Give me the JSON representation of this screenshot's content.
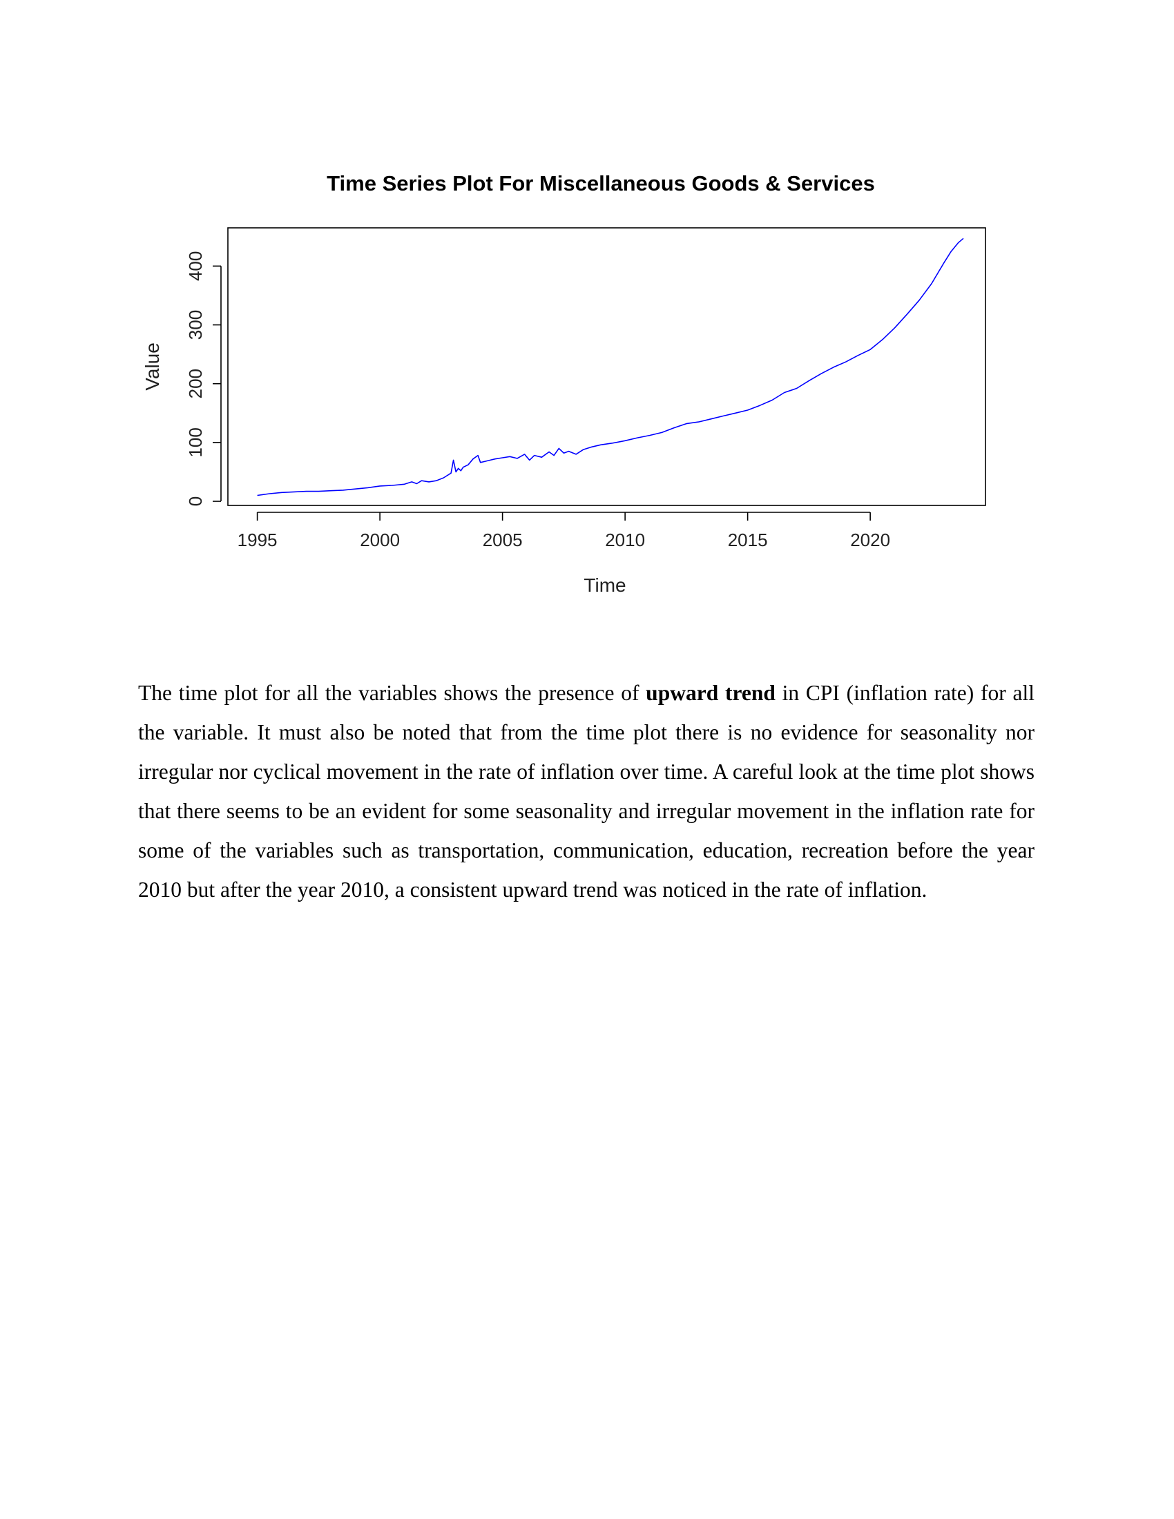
{
  "chart_data": {
    "type": "line",
    "title": "Time Series Plot For Miscellaneous Goods & Services",
    "xlabel": "Time",
    "ylabel": "Value",
    "xlim": [
      1993.8,
      2024.7
    ],
    "ylim": [
      -7,
      465
    ],
    "x_ticks": [
      1995,
      2000,
      2005,
      2010,
      2015,
      2020
    ],
    "y_ticks": [
      0,
      100,
      200,
      300,
      400
    ],
    "grid": false,
    "legend": "none",
    "line_color": "#0000ff",
    "series": [
      {
        "x": [
          1995,
          1995.5,
          1996,
          1996.5,
          1997,
          1997.5,
          1998,
          1998.5,
          1999,
          1999.5,
          2000,
          2000.5,
          2001,
          2001.3,
          2001.5,
          2001.7,
          2002,
          2002.3,
          2002.6,
          2002.9,
          2003.0,
          2003.1,
          2003.2,
          2003.3,
          2003.4,
          2003.6,
          2003.8,
          2004.0,
          2004.1,
          2004.3,
          2004.5,
          2004.7,
          2005.0,
          2005.3,
          2005.6,
          2005.9,
          2006.1,
          2006.3,
          2006.6,
          2006.9,
          2007.1,
          2007.3,
          2007.5,
          2007.7,
          2008.0,
          2008.3,
          2008.6,
          2009.0,
          2009.5,
          2010,
          2010.5,
          2011,
          2011.5,
          2012,
          2012.5,
          2013,
          2013.5,
          2014,
          2014.5,
          2015,
          2015.5,
          2016,
          2016.5,
          2017,
          2017.5,
          2018,
          2018.5,
          2019,
          2019.5,
          2020,
          2020.5,
          2021,
          2021.5,
          2022,
          2022.5,
          2023,
          2023.3,
          2023.6,
          2023.8
        ],
        "y": [
          10,
          13,
          15,
          16,
          17,
          17,
          18,
          19,
          21,
          23,
          26,
          27,
          29,
          33,
          30,
          35,
          33,
          35,
          40,
          48,
          70,
          50,
          56,
          52,
          58,
          62,
          72,
          78,
          66,
          68,
          70,
          72,
          74,
          76,
          73,
          80,
          70,
          78,
          75,
          84,
          78,
          90,
          82,
          85,
          80,
          88,
          92,
          96,
          99,
          103,
          108,
          112,
          117,
          125,
          132,
          135,
          140,
          145,
          150,
          155,
          163,
          172,
          185,
          192,
          205,
          217,
          228,
          237,
          248,
          258,
          275,
          295,
          318,
          342,
          370,
          405,
          425,
          440,
          447
        ]
      }
    ]
  },
  "paragraph": {
    "part1": "The time plot for all the variables shows the presence of ",
    "emphasis": "upward trend",
    "part2": " in CPI (inflation rate) for all the variable. It must also be noted that from the time plot there is no evidence for seasonality nor irregular nor cyclical movement in the rate of inflation over time. A careful look at the time plot shows that there seems to be an evident for some seasonality and irregular movement in the inflation rate for some of the variables such as transportation, communication, education, recreation before the year 2010 but after the year 2010, a consistent upward trend was noticed in the rate of inflation."
  }
}
